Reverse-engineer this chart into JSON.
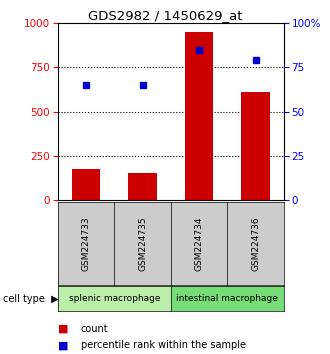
{
  "title": "GDS2982 / 1450629_at",
  "samples": [
    "GSM224733",
    "GSM224735",
    "GSM224734",
    "GSM224736"
  ],
  "counts": [
    175,
    155,
    950,
    610
  ],
  "percentiles": [
    65,
    65,
    85,
    79
  ],
  "bar_color": "#cc0000",
  "dot_color": "#0000cc",
  "ylim_left": [
    0,
    1000
  ],
  "ylim_right": [
    0,
    100
  ],
  "yticks_left": [
    0,
    250,
    500,
    750,
    1000
  ],
  "yticks_right": [
    0,
    25,
    50,
    75,
    100
  ],
  "groups": [
    {
      "label": "splenic macrophage",
      "indices": [
        0,
        1
      ],
      "color": "#bbeeaa"
    },
    {
      "label": "intestinal macrophage",
      "indices": [
        2,
        3
      ],
      "color": "#77dd77"
    }
  ],
  "background_color": "#ffffff",
  "plot_bg": "#ffffff",
  "bar_width": 0.5,
  "legend_items": [
    {
      "label": "count",
      "color": "#cc0000"
    },
    {
      "label": "percentile rank within the sample",
      "color": "#0000cc"
    }
  ]
}
